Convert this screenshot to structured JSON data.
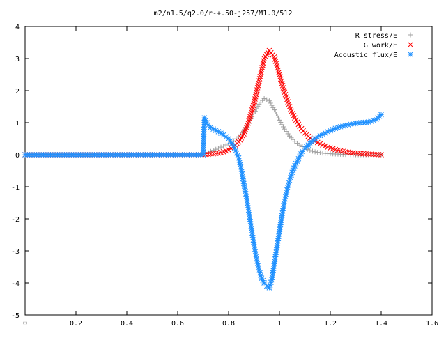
{
  "chart_data": {
    "type": "scatter",
    "title": "m2/n1.5/q2.0/r-+.50-j257/M1.0/512",
    "xlabel": "",
    "ylabel": "",
    "xlim": [
      0,
      1.6
    ],
    "ylim": [
      -5,
      4
    ],
    "xticks": [
      "0",
      "0.2",
      "0.4",
      "0.6",
      "0.8",
      "1",
      "1.2",
      "1.4",
      "1.6"
    ],
    "yticks": [
      "4",
      "3",
      "2",
      "1",
      "0",
      "-1",
      "-2",
      "-3",
      "-4",
      "-5"
    ],
    "grid": false,
    "legend_position": "top-right",
    "series": [
      {
        "name": "R stress/E",
        "marker": "+",
        "color": "#a0a0a0",
        "x": [
          0.0,
          0.1,
          0.2,
          0.3,
          0.4,
          0.5,
          0.6,
          0.7,
          0.72,
          0.75,
          0.78,
          0.8,
          0.82,
          0.84,
          0.86,
          0.88,
          0.9,
          0.92,
          0.94,
          0.96,
          0.98,
          1.0,
          1.02,
          1.04,
          1.06,
          1.08,
          1.1,
          1.12,
          1.14,
          1.16,
          1.18,
          1.2,
          1.25,
          1.3,
          1.35,
          1.4
        ],
        "y": [
          0.0,
          0.0,
          0.0,
          0.0,
          0.0,
          0.0,
          0.0,
          0.0,
          0.07,
          0.17,
          0.27,
          0.34,
          0.43,
          0.56,
          0.74,
          0.98,
          1.28,
          1.58,
          1.75,
          1.68,
          1.4,
          1.08,
          0.8,
          0.58,
          0.42,
          0.3,
          0.2,
          0.13,
          0.09,
          0.06,
          0.04,
          0.03,
          0.01,
          0.0,
          0.0,
          0.0
        ]
      },
      {
        "name": "G work/E",
        "marker": "x",
        "color": "#ff0000",
        "x": [
          0.0,
          0.1,
          0.2,
          0.3,
          0.4,
          0.5,
          0.6,
          0.7,
          0.72,
          0.74,
          0.76,
          0.78,
          0.8,
          0.82,
          0.84,
          0.86,
          0.88,
          0.9,
          0.92,
          0.94,
          0.96,
          0.98,
          1.0,
          1.02,
          1.04,
          1.06,
          1.08,
          1.1,
          1.12,
          1.14,
          1.16,
          1.18,
          1.2,
          1.22,
          1.24,
          1.26,
          1.3,
          1.35,
          1.4
        ],
        "y": [
          0.0,
          0.0,
          0.0,
          0.0,
          0.0,
          0.0,
          0.0,
          0.0,
          0.01,
          0.03,
          0.05,
          0.09,
          0.15,
          0.25,
          0.4,
          0.65,
          1.05,
          1.6,
          2.3,
          3.0,
          3.25,
          3.05,
          2.5,
          1.95,
          1.5,
          1.15,
          0.88,
          0.68,
          0.52,
          0.42,
          0.34,
          0.27,
          0.21,
          0.16,
          0.12,
          0.09,
          0.05,
          0.02,
          0.0
        ]
      },
      {
        "name": "Acoustic flux/E",
        "marker": "*",
        "color": "#1e90ff",
        "x": [
          0.0,
          0.1,
          0.2,
          0.3,
          0.4,
          0.5,
          0.6,
          0.7,
          0.705,
          0.72,
          0.74,
          0.76,
          0.78,
          0.8,
          0.82,
          0.84,
          0.85,
          0.86,
          0.87,
          0.88,
          0.89,
          0.9,
          0.91,
          0.92,
          0.93,
          0.94,
          0.95,
          0.96,
          0.97,
          0.98,
          0.99,
          1.0,
          1.01,
          1.02,
          1.03,
          1.04,
          1.05,
          1.06,
          1.07,
          1.08,
          1.09,
          1.1,
          1.12,
          1.14,
          1.16,
          1.18,
          1.2,
          1.22,
          1.25,
          1.28,
          1.3,
          1.32,
          1.35,
          1.38,
          1.4
        ],
        "y": [
          0.0,
          0.0,
          0.0,
          0.0,
          0.0,
          0.0,
          0.0,
          0.0,
          1.15,
          0.92,
          0.8,
          0.72,
          0.62,
          0.5,
          0.28,
          -0.1,
          -0.45,
          -0.9,
          -1.3,
          -1.8,
          -2.3,
          -2.8,
          -3.25,
          -3.6,
          -3.85,
          -4.0,
          -4.1,
          -4.15,
          -3.9,
          -3.4,
          -2.9,
          -2.4,
          -1.9,
          -1.45,
          -1.1,
          -0.8,
          -0.55,
          -0.35,
          -0.2,
          -0.05,
          0.1,
          0.2,
          0.35,
          0.5,
          0.6,
          0.68,
          0.75,
          0.82,
          0.9,
          0.95,
          0.98,
          1.0,
          1.02,
          1.1,
          1.25
        ]
      }
    ]
  }
}
